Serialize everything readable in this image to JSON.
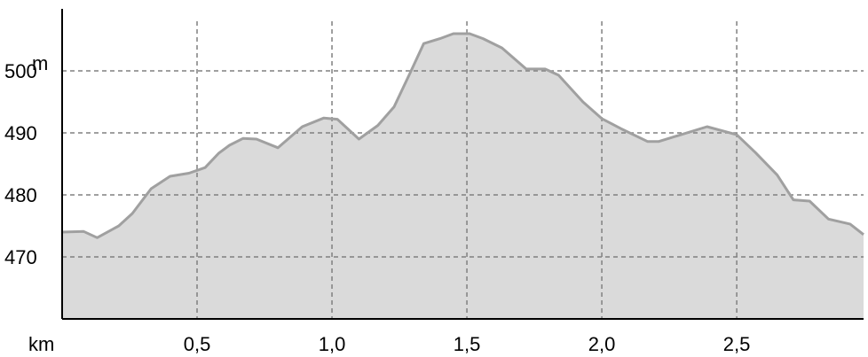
{
  "chart_data": {
    "type": "area",
    "xlabel": "km",
    "ylabel": "m",
    "xlim": [
      0,
      2.97
    ],
    "ylim": [
      460,
      510
    ],
    "x_ticks": [
      0.5,
      1.0,
      1.5,
      2.0,
      2.5
    ],
    "x_tick_labels": [
      "0,5",
      "1,0",
      "1,5",
      "2,0",
      "2,5"
    ],
    "y_ticks": [
      470,
      480,
      490,
      500
    ],
    "y_tick_labels": [
      "470",
      "480",
      "490",
      "500"
    ],
    "grid": true,
    "colors": {
      "fill": "#d3d3d3",
      "line": "#a0a0a0",
      "grid": "#808080",
      "axis": "#000000"
    },
    "series": [
      {
        "x": [
          0.0,
          0.08,
          0.13,
          0.21,
          0.26,
          0.33,
          0.4,
          0.47,
          0.53,
          0.58,
          0.62,
          0.67,
          0.72,
          0.8,
          0.89,
          0.97,
          1.02,
          1.1,
          1.17,
          1.23,
          1.29,
          1.34,
          1.4,
          1.45,
          1.51,
          1.56,
          1.63,
          1.72,
          1.79,
          1.84,
          1.93,
          2.0,
          2.07,
          2.17,
          2.21,
          2.3,
          2.39,
          2.5,
          2.57,
          2.65,
          2.71,
          2.77,
          2.84,
          2.92,
          2.97
        ],
        "y": [
          474,
          474.1,
          473.1,
          475,
          477,
          481,
          483,
          483.5,
          484.4,
          486.7,
          488,
          489.1,
          489,
          487.6,
          491,
          492.4,
          492.2,
          489,
          491.2,
          494.2,
          499.7,
          504.4,
          505.2,
          506,
          506,
          505.2,
          503.7,
          500.3,
          500.3,
          499.3,
          495,
          492.3,
          490.7,
          488.6,
          488.6,
          489.8,
          491,
          489.7,
          486.8,
          483.2,
          479.2,
          479,
          476.1,
          475.3,
          473.6
        ]
      }
    ]
  }
}
